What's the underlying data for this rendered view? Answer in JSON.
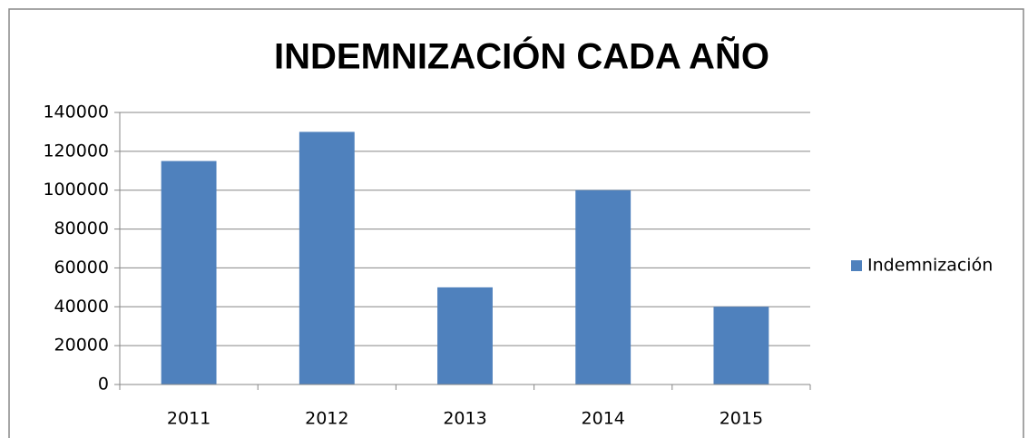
{
  "chart_data": {
    "type": "bar",
    "title": "INDEMNIZACIÓN CADA AÑO",
    "categories": [
      "2011",
      "2012",
      "2013",
      "2014",
      "2015"
    ],
    "series": [
      {
        "name": "Indemnización",
        "color": "#4f81bd",
        "values": [
          115000,
          130000,
          50000,
          100000,
          40000
        ]
      }
    ],
    "ylim": [
      0,
      140000
    ],
    "yticks": [
      0,
      20000,
      40000,
      60000,
      80000,
      100000,
      120000,
      140000
    ],
    "grid": true,
    "legend": "right"
  }
}
